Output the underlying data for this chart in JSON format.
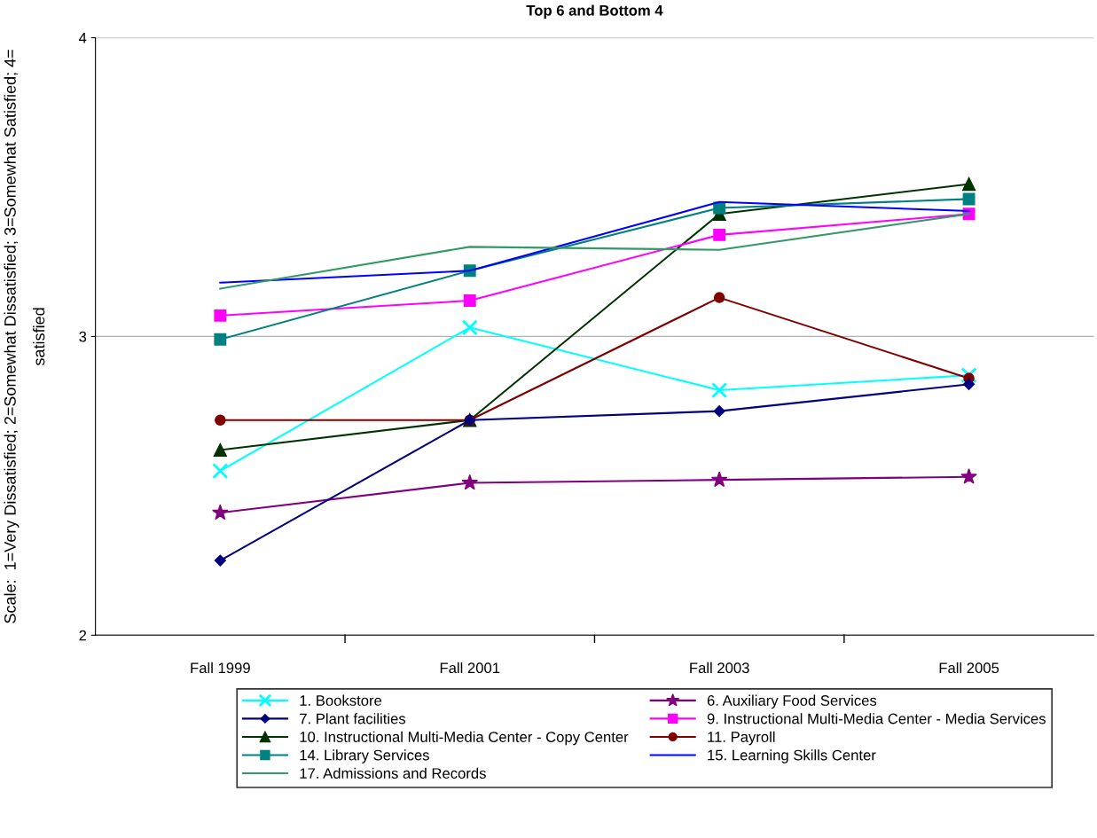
{
  "chart_data": {
    "type": "line",
    "title": "Top 6 and Bottom 4",
    "ylabel": "Scale:  1=Very Dissatisfied; 2=Somewhat Dissatisfied; 3=Somewhat Satisfied; 4=\nsatisfied",
    "categories": [
      "Fall 1999",
      "Fall 2001",
      "Fall 2003",
      "Fall 2005"
    ],
    "ylim": [
      2,
      4
    ],
    "yticks": [
      2,
      3,
      4
    ],
    "grid": "y",
    "legend": "bottom",
    "series": [
      {
        "name": "1. Bookstore",
        "color": "#00ffff",
        "marker": "cross",
        "values": [
          2.55,
          3.03,
          2.82,
          2.87
        ]
      },
      {
        "name": "6. Auxiliary Food Services",
        "color": "#800080",
        "marker": "star",
        "values": [
          2.41,
          2.51,
          2.52,
          2.53
        ]
      },
      {
        "name": "7. Plant facilities",
        "color": "#000080",
        "marker": "diamond",
        "values": [
          2.25,
          2.72,
          2.75,
          2.84
        ]
      },
      {
        "name": "9. Instructional Multi-Media Center - Media Services",
        "color": "#ff00ff",
        "marker": "square",
        "values": [
          3.07,
          3.12,
          3.34,
          3.41
        ]
      },
      {
        "name": "10. Instructional Multi-Media Center - Copy Center",
        "color": "#003300",
        "marker": "triangle",
        "values": [
          2.62,
          2.72,
          3.41,
          3.51
        ]
      },
      {
        "name": "11. Payroll",
        "color": "#800000",
        "marker": "circle",
        "values": [
          2.72,
          2.72,
          3.13,
          2.86
        ]
      },
      {
        "name": "14. Library Services",
        "color": "#008080",
        "marker": "square",
        "values": [
          2.99,
          3.22,
          3.43,
          3.46
        ]
      },
      {
        "name": "15. Learning Skills Center",
        "color": "#0000ff",
        "marker": "none",
        "values": [
          3.18,
          3.22,
          3.45,
          3.42
        ]
      },
      {
        "name": "17. Admissions and Records",
        "color": "#339966",
        "marker": "none",
        "values": [
          3.16,
          3.3,
          3.29,
          3.41
        ]
      }
    ]
  }
}
